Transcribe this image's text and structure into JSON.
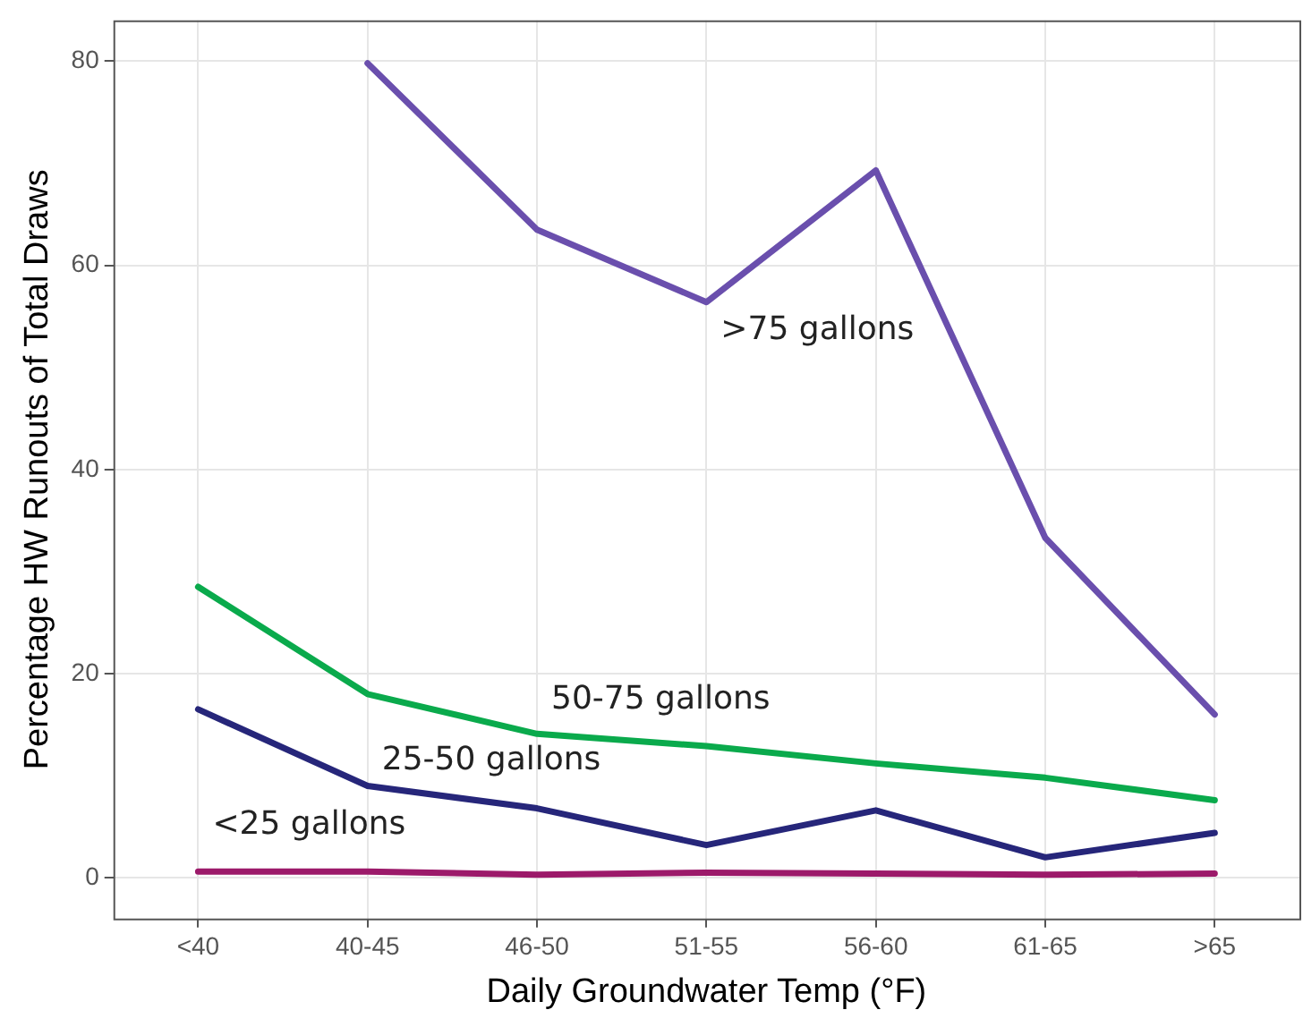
{
  "chart_data": {
    "type": "line",
    "xlabel": "Daily Groundwater Temp (°F)",
    "ylabel": "Percentage HW Runouts of Total Draws",
    "categories": [
      "<40",
      "40-45",
      "46-50",
      "51-55",
      "56-60",
      "61-65",
      ">65"
    ],
    "series": [
      {
        "name": ">75 gallons",
        "color": "#6a4fad",
        "values": [
          null,
          79.8,
          63.5,
          56.4,
          69.3,
          33.3,
          16.0
        ]
      },
      {
        "name": "50-75 gallons",
        "color": "#0aaa4c",
        "values": [
          28.5,
          18.0,
          14.1,
          12.9,
          11.2,
          9.8,
          7.6
        ]
      },
      {
        "name": "25-50 gallons",
        "color": "#26267a",
        "values": [
          16.5,
          9.0,
          6.8,
          3.2,
          6.6,
          2.0,
          4.4
        ]
      },
      {
        "name": "<25 gallons",
        "color": "#9c1a6a",
        "values": [
          0.6,
          0.6,
          0.3,
          0.5,
          0.4,
          0.3,
          0.4
        ]
      }
    ],
    "ylim": [
      -4,
      84
    ],
    "yticks": [
      0,
      20,
      40,
      60,
      80
    ],
    "grid": true,
    "legend": false,
    "marker": "none",
    "line_style": "solid"
  }
}
